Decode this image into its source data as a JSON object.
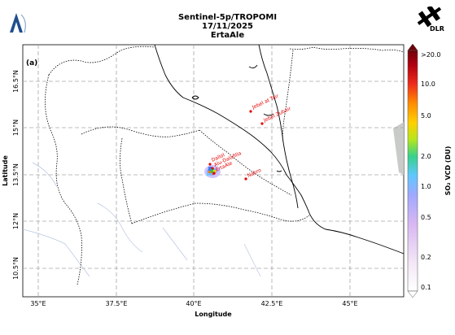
{
  "header": {
    "line1": "Sentinel-5p/TROPOMI",
    "line2": "17/11/2025",
    "line3": "ErtaAle",
    "right_logo_text": "DLR"
  },
  "panel_label": "(a)",
  "axes": {
    "xlabel": "Longitude",
    "ylabel": "Latitude",
    "xticks": [
      "35°E",
      "37.5°E",
      "40°E",
      "42.5°E",
      "45°E"
    ],
    "yticks": [
      "16.5°N",
      "15°N",
      "13.5°N",
      "12°N",
      "10.5°N"
    ]
  },
  "volcanoes": [
    "Jebel at Tair",
    "Jebel Zubair",
    "Dallol",
    "Alu-Dalafilla",
    "ErtaAle",
    "Nabro"
  ],
  "colorbar": {
    "label": "SO₂ VCD (DU)",
    "ticks": [
      ">20.0",
      "10.0",
      "5.0",
      "2.0",
      "1.0",
      "0.5",
      "0.2",
      "0.1"
    ]
  },
  "colors": {
    "grid": "#a6a6a6",
    "volcano_marker": "#e60000",
    "coast": "#000000"
  }
}
